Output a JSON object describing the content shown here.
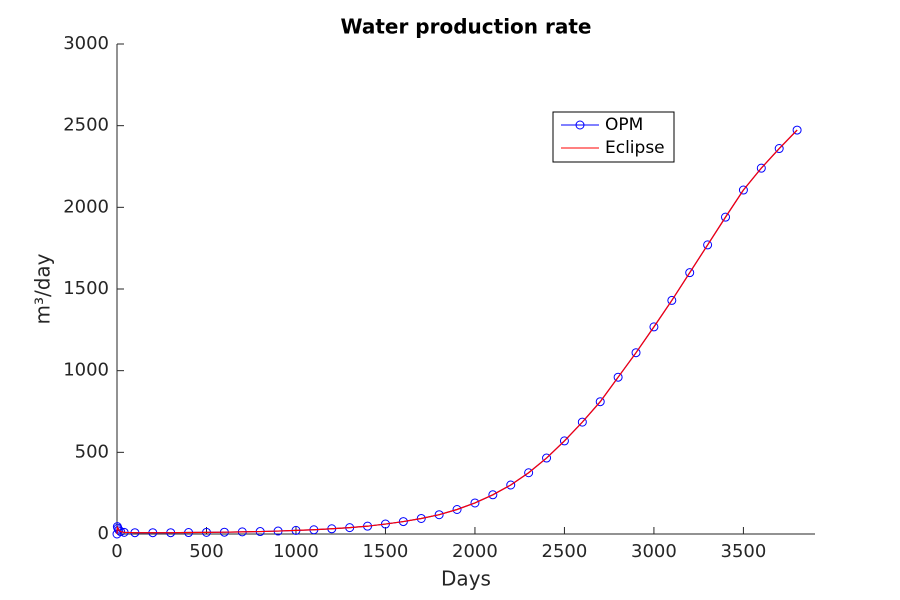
{
  "chart_data": {
    "type": "line",
    "title": "Water production rate",
    "x_label": "Days",
    "y_label": "m³/day",
    "xlim": [
      0,
      3900
    ],
    "ylim": [
      0,
      3000
    ],
    "xticks": [
      0,
      500,
      1000,
      1500,
      2000,
      2500,
      3000,
      3500
    ],
    "yticks": [
      0,
      500,
      1000,
      1500,
      2000,
      2500,
      3000
    ],
    "grid": false,
    "legend": "upper right",
    "series": [
      {
        "name": "OPM",
        "color": "#0000ff",
        "marker": "circle",
        "x": [
          0,
          2,
          5,
          10,
          20,
          40,
          100,
          200,
          300,
          400,
          500,
          600,
          700,
          800,
          900,
          1000,
          1100,
          1200,
          1300,
          1400,
          1500,
          1600,
          1700,
          1800,
          1900,
          2000,
          2100,
          2200,
          2300,
          2400,
          2500,
          2600,
          2700,
          2800,
          2900,
          3000,
          3100,
          3200,
          3300,
          3400,
          3500,
          3600,
          3700,
          3800
        ],
        "values": [
          0,
          45,
          35,
          25,
          15,
          10,
          8,
          8,
          8,
          9,
          10,
          11,
          13,
          15,
          18,
          22,
          26,
          32,
          39,
          48,
          61,
          76,
          95,
          118,
          150,
          190,
          240,
          300,
          375,
          465,
          570,
          685,
          810,
          960,
          1110,
          1268,
          1430,
          1600,
          1770,
          1940,
          2106,
          2240,
          2360,
          2473
        ]
      },
      {
        "name": "Eclipse",
        "color": "#ff0000",
        "marker": "none",
        "x": [
          0,
          2,
          5,
          10,
          20,
          40,
          100,
          200,
          300,
          400,
          500,
          600,
          700,
          800,
          900,
          1000,
          1100,
          1200,
          1300,
          1400,
          1500,
          1600,
          1700,
          1800,
          1900,
          2000,
          2100,
          2200,
          2300,
          2400,
          2500,
          2600,
          2700,
          2800,
          2900,
          3000,
          3100,
          3200,
          3300,
          3400,
          3500,
          3600,
          3700,
          3800
        ],
        "values": [
          0,
          45,
          35,
          25,
          15,
          10,
          8,
          8,
          8,
          9,
          10,
          11,
          13,
          15,
          18,
          22,
          26,
          32,
          39,
          48,
          61,
          76,
          95,
          118,
          150,
          190,
          240,
          300,
          375,
          465,
          570,
          685,
          810,
          960,
          1110,
          1268,
          1430,
          1600,
          1770,
          1940,
          2106,
          2240,
          2360,
          2473
        ]
      }
    ]
  }
}
